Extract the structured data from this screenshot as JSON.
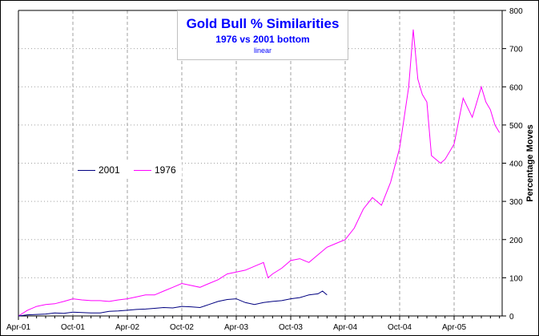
{
  "chart_data": {
    "type": "line",
    "title": "Gold Bull % Similarities",
    "subtitle": "1976 vs 2001 bottom",
    "scale": "linear",
    "xlabel": "",
    "ylabel": "Percentage Moves",
    "ylim": [
      0,
      800
    ],
    "yticks": [
      "0",
      "100",
      "200",
      "300",
      "400",
      "500",
      "600",
      "700",
      "800"
    ],
    "xticks": [
      "Apr-01",
      "Oct-01",
      "Apr-02",
      "Oct-02",
      "Apr-03",
      "Oct-03",
      "Apr-04",
      "Oct-04",
      "Apr-05"
    ],
    "x_unit": "months since Apr-01",
    "xlim": [
      0,
      53
    ],
    "grid": true,
    "legend_placement": "middle-left",
    "series": [
      {
        "name": "2001",
        "color": "#000080",
        "x": [
          0,
          1,
          2,
          3,
          4,
          5,
          6,
          7,
          8,
          9,
          10,
          11,
          12,
          13,
          14,
          15,
          16,
          17,
          18,
          19,
          20,
          21,
          22,
          23,
          24,
          25,
          26,
          27,
          28,
          29,
          30,
          31,
          32,
          33,
          33.5,
          34
        ],
        "values": [
          0,
          3,
          4,
          5,
          8,
          7,
          10,
          9,
          8,
          8,
          12,
          13,
          15,
          17,
          18,
          20,
          22,
          21,
          25,
          24,
          22,
          30,
          38,
          43,
          45,
          35,
          30,
          35,
          38,
          40,
          45,
          48,
          55,
          58,
          65,
          55
        ]
      },
      {
        "name": "1976",
        "color": "#ff00ff",
        "x": [
          0,
          1,
          2,
          3,
          4,
          5,
          6,
          7,
          8,
          9,
          10,
          11,
          12,
          13,
          14,
          15,
          16,
          17,
          18,
          19,
          20,
          21,
          22,
          23,
          24,
          25,
          26,
          27,
          27.5,
          28,
          29,
          30,
          31,
          32,
          33,
          34,
          35,
          36,
          37,
          38,
          39,
          40,
          41,
          42,
          42.5,
          43,
          43.5,
          44,
          44.5,
          45,
          45.5,
          46,
          46.5,
          47,
          48,
          49,
          50,
          51,
          51.5,
          52,
          52.5,
          53
        ],
        "values": [
          0,
          15,
          25,
          30,
          32,
          38,
          45,
          42,
          40,
          40,
          38,
          42,
          45,
          50,
          55,
          55,
          65,
          75,
          85,
          80,
          75,
          85,
          95,
          110,
          115,
          120,
          130,
          140,
          100,
          110,
          125,
          145,
          150,
          140,
          160,
          180,
          190,
          200,
          230,
          280,
          310,
          290,
          350,
          440,
          520,
          600,
          750,
          620,
          580,
          560,
          420,
          410,
          400,
          410,
          450,
          570,
          520,
          600,
          560,
          540,
          500,
          480
        ]
      }
    ]
  }
}
